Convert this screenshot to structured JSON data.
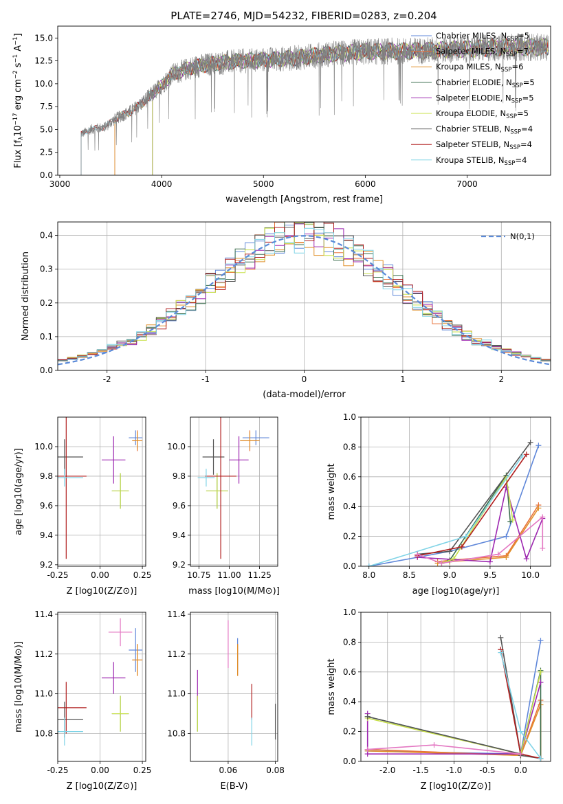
{
  "figure": {
    "title": "PLATE=2746, MJD=54232, FIBERID=0283, z=0.204"
  },
  "series": [
    {
      "name": "Chabrier MILES",
      "nssp": "5",
      "color": "#5f87d9"
    },
    {
      "name": "Salpeter MILES",
      "nssp": "7",
      "color": "#e8723a"
    },
    {
      "name": "Kroupa MILES",
      "nssp": "6",
      "color": "#e0902a"
    },
    {
      "name": "Chabrier ELODIE",
      "nssp": "5",
      "color": "#3a6e4e"
    },
    {
      "name": "Salpeter ELODIE",
      "nssp": "5",
      "color": "#9d27b0"
    },
    {
      "name": "Kroupa ELODIE",
      "nssp": "5",
      "color": "#c8e04a"
    },
    {
      "name": "Chabrier STELIB",
      "nssp": "4",
      "color": "#555555"
    },
    {
      "name": "Salpeter STELIB",
      "nssp": "4",
      "color": "#b01e1e"
    },
    {
      "name": "Kroupa STELIB",
      "nssp": "4",
      "color": "#7fd3e6"
    }
  ],
  "chart_data": [
    {
      "id": "spectrum",
      "type": "line",
      "title": "PLATE=2746, MJD=54232, FIBERID=0283, z=0.204",
      "xlabel": "wavelength [Angstrom, rest frame]",
      "ylabel": "Flux [f_λ10^-17 erg cm^-2 s^-1 A^-1]",
      "xlim": [
        2980,
        7820
      ],
      "ylim": [
        0,
        16.3
      ],
      "xticks": [
        3000,
        4000,
        5000,
        6000,
        7000
      ],
      "yticks": [
        0.0,
        2.5,
        5.0,
        7.5,
        10.0,
        12.5,
        15.0
      ],
      "data_continuum": {
        "x": [
          3210,
          3300,
          3450,
          3550,
          3700,
          3800,
          3900,
          4000,
          4100,
          4300,
          4500,
          4800,
          5000,
          5300,
          5600,
          6000,
          6500,
          7000,
          7400,
          7820
        ],
        "y": [
          4.5,
          5.0,
          5.3,
          6.2,
          7.0,
          7.8,
          8.8,
          9.8,
          11.0,
          11.8,
          12.2,
          12.5,
          12.6,
          12.8,
          13.2,
          13.5,
          13.6,
          13.8,
          14.0,
          14.0
        ]
      },
      "model_start_wavelengths": {
        "MILES": 3540,
        "ELODIE": 3910,
        "STELIB": 3210
      },
      "legend_loc": "upper right"
    },
    {
      "id": "residuals",
      "type": "histogram",
      "xlabel": "(data-model)/error",
      "ylabel": "Normed distribution",
      "xlim": [
        -2.5,
        2.5
      ],
      "ylim": [
        0,
        0.44
      ],
      "xticks": [
        -2,
        -1,
        0,
        1,
        2
      ],
      "yticks": [
        0.0,
        0.1,
        0.2,
        0.3,
        0.4
      ],
      "bin_width": 0.1,
      "reference_curve": "N(0,1)",
      "legend_loc": "upper right"
    },
    {
      "id": "age_vs_Z",
      "type": "errorbar",
      "xlabel": "Z [log10(Z/Z⊙)]",
      "ylabel": "age [log10(age/yr)]",
      "xlim": [
        -0.25,
        0.27
      ],
      "ylim": [
        9.19,
        10.2
      ],
      "xticks": [
        -0.25,
        0.0,
        0.25
      ],
      "yticks": [
        9.2,
        9.4,
        9.6,
        9.8,
        10.0
      ],
      "points": [
        {
          "x": 0.21,
          "xerr": 0.04,
          "y": 10.06,
          "yerr": 0.05
        },
        {
          "x": 0.22,
          "xerr": 0.03,
          "y": 10.04,
          "yerr": 0.07
        },
        {
          "x": 0.22,
          "xerr": 0.03,
          "y": 10.04,
          "yerr": 0.06
        },
        {
          "x": 0.12,
          "xerr": 0.05,
          "y": 9.7,
          "yerr": 0.12
        },
        {
          "x": 0.08,
          "xerr": 0.07,
          "y": 9.91,
          "yerr": 0.16
        },
        {
          "x": 0.12,
          "xerr": 0.05,
          "y": 9.7,
          "yerr": 0.12
        },
        {
          "x": -0.21,
          "xerr": 0.11,
          "y": 9.93,
          "yerr": 0.12
        },
        {
          "x": -0.2,
          "xerr": 0.12,
          "y": 9.8,
          "yerr": 0.56
        },
        {
          "x": -0.21,
          "xerr": 0.11,
          "y": 9.79,
          "yerr": 0.06
        }
      ]
    },
    {
      "id": "age_vs_mass",
      "type": "errorbar",
      "xlabel": "mass [log10(M/M⊙)]",
      "ylabel": "",
      "xlim": [
        10.68,
        11.4
      ],
      "ylim": [
        9.19,
        10.2
      ],
      "xticks": [
        10.75,
        11.0,
        11.25
      ],
      "yticks": [
        9.2,
        9.4,
        9.6,
        9.8,
        10.0
      ],
      "points": [
        {
          "x": 11.22,
          "xerr": 0.11,
          "y": 10.06,
          "yerr": 0.05
        },
        {
          "x": 11.17,
          "xerr": 0.08,
          "y": 10.04,
          "yerr": 0.07
        },
        {
          "x": 11.17,
          "xerr": 0.08,
          "y": 10.04,
          "yerr": 0.06
        },
        {
          "x": 10.9,
          "xerr": 0.09,
          "y": 9.7,
          "yerr": 0.12
        },
        {
          "x": 11.08,
          "xerr": 0.08,
          "y": 9.91,
          "yerr": 0.16
        },
        {
          "x": 10.9,
          "xerr": 0.09,
          "y": 9.7,
          "yerr": 0.12
        },
        {
          "x": 10.87,
          "xerr": 0.09,
          "y": 9.93,
          "yerr": 0.12
        },
        {
          "x": 10.93,
          "xerr": 0.13,
          "y": 9.8,
          "yerr": 0.56
        },
        {
          "x": 10.81,
          "xerr": 0.07,
          "y": 9.79,
          "yerr": 0.06
        }
      ]
    },
    {
      "id": "weight_vs_age",
      "type": "line",
      "xlabel": "age [log10(age/yr)]",
      "ylabel": "mass weight",
      "xlim": [
        7.9,
        10.25
      ],
      "ylim": [
        0,
        1.0
      ],
      "xticks": [
        8.0,
        8.5,
        9.0,
        9.5,
        10.0
      ],
      "yticks": [
        0.0,
        0.2,
        0.4,
        0.6,
        0.8,
        1.0
      ],
      "series": [
        {
          "x": [
            8.0,
            9.0,
            9.7,
            10.1
          ],
          "y": [
            0.0,
            0.1,
            0.2,
            0.81
          ]
        },
        {
          "x": [
            8.85,
            9.0,
            9.7,
            10.1
          ],
          "y": [
            0.03,
            0.04,
            0.07,
            0.41
          ]
        },
        {
          "x": [
            8.85,
            9.0,
            9.7,
            10.1
          ],
          "y": [
            0.02,
            0.03,
            0.06,
            0.39
          ]
        },
        {
          "x": [
            8.9,
            9.0,
            9.7,
            9.75
          ],
          "y": [
            0.02,
            0.04,
            0.61,
            0.3
          ]
        },
        {
          "x": [
            8.6,
            9.5,
            9.7,
            9.95,
            10.15
          ],
          "y": [
            0.06,
            0.03,
            0.53,
            0.05,
            0.32
          ]
        },
        {
          "x": [
            8.9,
            9.05,
            9.7,
            9.78
          ],
          "y": [
            0.02,
            0.05,
            0.6,
            0.31
          ]
        },
        {
          "x": [
            8.6,
            9.0,
            10.0
          ],
          "y": [
            0.08,
            0.1,
            0.83
          ]
        },
        {
          "x": [
            8.6,
            9.15,
            9.95
          ],
          "y": [
            0.07,
            0.13,
            0.75
          ]
        },
        {
          "x": [
            8.0,
            9.2,
            9.9
          ],
          "y": [
            0.0,
            0.2,
            0.74
          ]
        }
      ],
      "extra_series": [
        {
          "x": [
            8.6,
            8.9,
            9.6,
            10.15,
            10.15
          ],
          "y": [
            0.08,
            0.02,
            0.08,
            0.33,
            0.12
          ]
        }
      ]
    },
    {
      "id": "mass_vs_Z",
      "type": "errorbar",
      "xlabel": "Z [log10(Z/Z⊙)]",
      "ylabel": "mass [log10(M/M⊙)]",
      "xlim": [
        -0.25,
        0.27
      ],
      "ylim": [
        10.66,
        11.41
      ],
      "xticks": [
        -0.25,
        0.0,
        0.25
      ],
      "yticks": [
        10.8,
        11.0,
        11.2,
        11.4
      ],
      "points": [
        {
          "x": 0.21,
          "xerr": 0.04,
          "y": 11.22,
          "yerr": 0.11
        },
        {
          "x": 0.22,
          "xerr": 0.03,
          "y": 11.17,
          "yerr": 0.08
        },
        {
          "x": 0.22,
          "xerr": 0.03,
          "y": 11.17,
          "yerr": 0.08
        },
        {
          "x": 0.12,
          "xerr": 0.05,
          "y": 10.9,
          "yerr": 0.09
        },
        {
          "x": 0.08,
          "xerr": 0.07,
          "y": 11.08,
          "yerr": 0.08
        },
        {
          "x": 0.12,
          "xerr": 0.05,
          "y": 10.9,
          "yerr": 0.09
        },
        {
          "x": -0.21,
          "xerr": 0.11,
          "y": 10.87,
          "yerr": 0.09
        },
        {
          "x": -0.2,
          "xerr": 0.12,
          "y": 10.93,
          "yerr": 0.13
        },
        {
          "x": -0.21,
          "xerr": 0.11,
          "y": 10.81,
          "yerr": 0.07
        }
      ],
      "extra_points": [
        {
          "x": 0.12,
          "xerr": 0.07,
          "y": 11.31,
          "yerr": 0.07
        }
      ]
    },
    {
      "id": "mass_vs_ebv",
      "type": "errorbar",
      "xlabel": "E(B-V)",
      "ylabel": "",
      "xlim": [
        0.044,
        0.081
      ],
      "ylim": [
        10.66,
        11.41
      ],
      "xticks": [
        0.06,
        0.08
      ],
      "yticks": [
        10.8,
        11.0,
        11.2,
        11.4
      ],
      "points": [
        {
          "x": 0.064,
          "y": 11.2,
          "yerr": 0.08
        },
        {
          "x": 0.064,
          "y": 11.17,
          "yerr": 0.08
        },
        {
          "x": 0.064,
          "y": 11.17,
          "yerr": 0.08
        },
        {
          "x": 0.047,
          "y": 10.9,
          "yerr": 0.09
        },
        {
          "x": 0.047,
          "y": 11.04,
          "yerr": 0.08
        },
        {
          "x": 0.047,
          "y": 10.9,
          "yerr": 0.09
        },
        {
          "x": 0.08,
          "y": 10.86,
          "yerr": 0.09
        },
        {
          "x": 0.07,
          "y": 10.96,
          "yerr": 0.09
        },
        {
          "x": 0.07,
          "y": 10.81,
          "yerr": 0.07
        }
      ],
      "extra_points": [
        {
          "x": 0.06,
          "y": 11.25,
          "yerr": 0.12
        }
      ]
    },
    {
      "id": "weight_vs_Z",
      "type": "line",
      "xlabel": "Z [log10(Z/Z⊙)]",
      "ylabel": "mass weight",
      "xlim": [
        -2.4,
        0.45
      ],
      "ylim": [
        0,
        1.0
      ],
      "xticks": [
        -2.0,
        -1.5,
        -1.0,
        -0.5,
        0.0
      ],
      "yticks": [
        0.0,
        0.2,
        0.4,
        0.6,
        0.8,
        1.0
      ],
      "series": [
        {
          "x": [
            -2.3,
            0.0,
            0.3
          ],
          "y": [
            0.07,
            0.05,
            0.81
          ]
        },
        {
          "x": [
            -2.3,
            0.0,
            0.3,
            0.3
          ],
          "y": [
            0.08,
            0.04,
            0.41,
            0.02
          ]
        },
        {
          "x": [
            -2.3,
            0.0,
            0.3,
            0.3
          ],
          "y": [
            0.07,
            0.04,
            0.38,
            0.02
          ]
        },
        {
          "x": [
            -2.3,
            0.0,
            0.3,
            0.3
          ],
          "y": [
            0.3,
            0.05,
            0.61,
            0.02
          ]
        },
        {
          "x": [
            -2.3,
            -2.3,
            0.0,
            0.3
          ],
          "y": [
            0.32,
            0.05,
            0.05,
            0.53
          ]
        },
        {
          "x": [
            -2.3,
            0.0,
            0.3
          ],
          "y": [
            0.29,
            0.05,
            0.6
          ]
        },
        {
          "x": [
            -2.3,
            0.0,
            -0.3,
            0.0,
            0.3
          ],
          "y": [
            0.3,
            0.05,
            0.83,
            0.04,
            0.02
          ]
        },
        {
          "x": [
            -0.3,
            0.0,
            0.3
          ],
          "y": [
            0.75,
            0.05,
            0.02
          ]
        },
        {
          "x": [
            -0.3,
            0.0,
            0.3
          ],
          "y": [
            0.73,
            0.2,
            0.02
          ]
        }
      ],
      "extra_series": [
        {
          "x": [
            -2.3,
            -1.3,
            0.0
          ],
          "y": [
            0.08,
            0.11,
            0.05
          ]
        }
      ]
    }
  ]
}
